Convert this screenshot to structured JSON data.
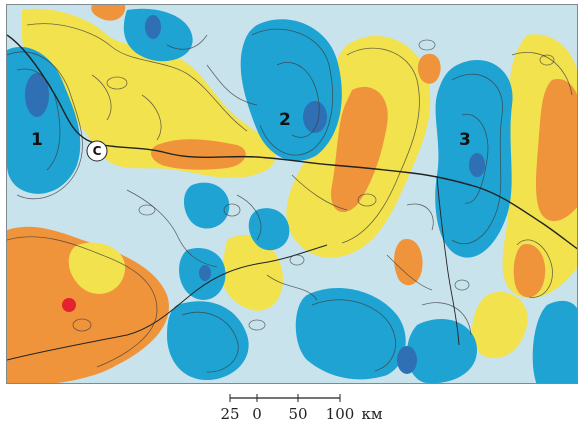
{
  "map": {
    "region_labels": [
      "1",
      "2",
      "3"
    ],
    "circle_label": "С",
    "colors": {
      "background": "#c9e3ec",
      "blue": "#1ea3d3",
      "blue_dark": "#2f6fb3",
      "yellow": "#f2e24d",
      "orange": "#f0943c",
      "red": "#e5222f",
      "contour": "#3b3b3b",
      "road": "#222222"
    }
  },
  "scale": {
    "ticks": [
      "25",
      "0",
      "50",
      "100"
    ],
    "unit": "км"
  }
}
